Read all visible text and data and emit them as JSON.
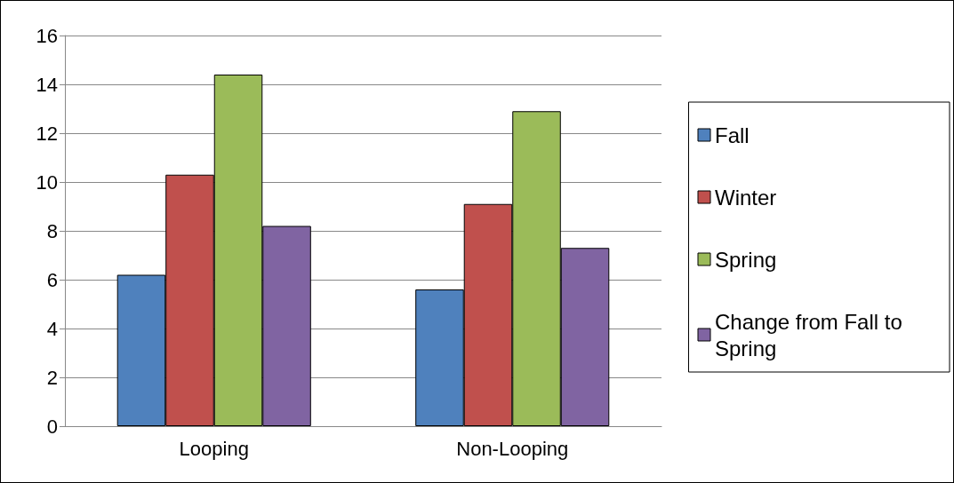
{
  "chart_data": {
    "type": "bar",
    "categories": [
      "Looping",
      "Non-Looping"
    ],
    "series": [
      {
        "name": "Fall",
        "color": "#4f81bd",
        "values": [
          6.2,
          5.6
        ]
      },
      {
        "name": "Winter",
        "color": "#c0504d",
        "values": [
          10.3,
          9.1
        ]
      },
      {
        "name": "Spring",
        "color": "#9bbb59",
        "values": [
          14.4,
          12.9
        ]
      },
      {
        "name": "Change from Fall to Spring",
        "color": "#8064a2",
        "values": [
          8.2,
          7.3
        ]
      }
    ],
    "ylim": [
      0,
      16
    ],
    "yticks": [
      0,
      2,
      4,
      6,
      8,
      10,
      12,
      14,
      16
    ],
    "grid": "y",
    "legend": "right"
  }
}
